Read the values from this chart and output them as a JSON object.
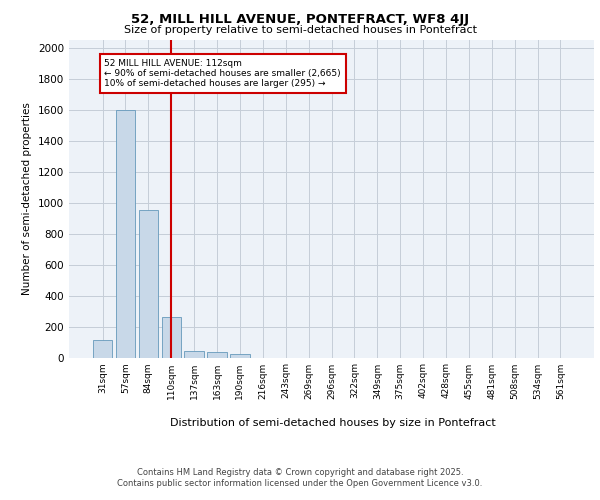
{
  "title1": "52, MILL HILL AVENUE, PONTEFRACT, WF8 4JJ",
  "title2": "Size of property relative to semi-detached houses in Pontefract",
  "xlabel": "Distribution of semi-detached houses by size in Pontefract",
  "ylabel": "Number of semi-detached properties",
  "categories": [
    "31sqm",
    "57sqm",
    "84sqm",
    "110sqm",
    "137sqm",
    "163sqm",
    "190sqm",
    "216sqm",
    "243sqm",
    "269sqm",
    "296sqm",
    "322sqm",
    "349sqm",
    "375sqm",
    "402sqm",
    "428sqm",
    "455sqm",
    "481sqm",
    "508sqm",
    "534sqm",
    "561sqm"
  ],
  "values": [
    110,
    1600,
    950,
    260,
    40,
    35,
    20,
    0,
    0,
    0,
    0,
    0,
    0,
    0,
    0,
    0,
    0,
    0,
    0,
    0,
    0
  ],
  "bar_color": "#c8d8e8",
  "bar_edge_color": "#6699bb",
  "vline_x_index": 3,
  "vline_color": "#cc0000",
  "property_label": "52 MILL HILL AVENUE: 112sqm",
  "annotation_line1": "← 90% of semi-detached houses are smaller (2,665)",
  "annotation_line2": "10% of semi-detached houses are larger (295) →",
  "annotation_box_color": "#cc0000",
  "ylim": [
    0,
    2050
  ],
  "yticks": [
    0,
    200,
    400,
    600,
    800,
    1000,
    1200,
    1400,
    1600,
    1800,
    2000
  ],
  "footer1": "Contains HM Land Registry data © Crown copyright and database right 2025.",
  "footer2": "Contains public sector information licensed under the Open Government Licence v3.0.",
  "bg_color": "#edf2f8",
  "grid_color": "#c5cdd8"
}
